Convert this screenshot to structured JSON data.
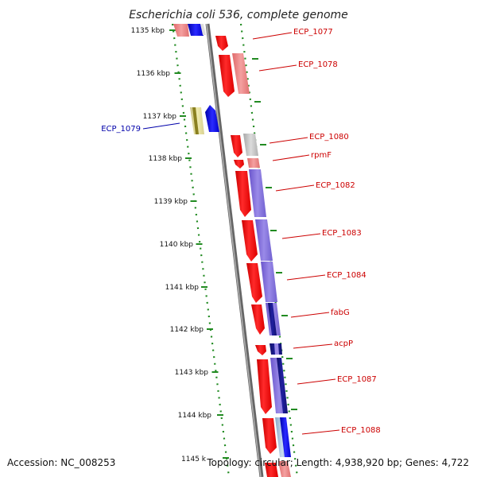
{
  "title": "Escherichia coli 536, complete genome",
  "footer": {
    "accession": "Accession: NC_008253",
    "summary": "Topology: circular; Length: 4,938,920 bp; Genes: 4,722"
  },
  "ticks": [
    {
      "label": "1135 kbp"
    },
    {
      "label": "1136 kbp"
    },
    {
      "label": "1137 kbp"
    },
    {
      "label": "1138 kbp"
    },
    {
      "label": "1139 kbp"
    },
    {
      "label": "1140 kbp"
    },
    {
      "label": "1141 kbp"
    },
    {
      "label": "1142 kbp"
    },
    {
      "label": "1143 kbp"
    },
    {
      "label": "1144 kbp"
    },
    {
      "label": "1145 k"
    }
  ],
  "gene_labels": [
    {
      "text": "ECP_1077",
      "color": "#cc0000"
    },
    {
      "text": "ECP_1078",
      "color": "#cc0000"
    },
    {
      "text": "ECP_1079",
      "color": "#0000aa"
    },
    {
      "text": "ECP_1080",
      "color": "#cc0000"
    },
    {
      "text": "rpmF",
      "color": "#cc0000"
    },
    {
      "text": "ECP_1082",
      "color": "#cc0000"
    },
    {
      "text": "ECP_1083",
      "color": "#cc0000"
    },
    {
      "text": "ECP_1084",
      "color": "#cc0000"
    },
    {
      "text": "fabG",
      "color": "#cc0000"
    },
    {
      "text": "acpP",
      "color": "#cc0000"
    },
    {
      "text": "ECP_1087",
      "color": "#cc0000"
    },
    {
      "text": "ECP_1088",
      "color": "#cc0000"
    }
  ],
  "colors": {
    "forward_strand": "#ff0000",
    "reverse_strand": "#0000ff",
    "backbone": "#888888",
    "tick": "#228b22"
  }
}
